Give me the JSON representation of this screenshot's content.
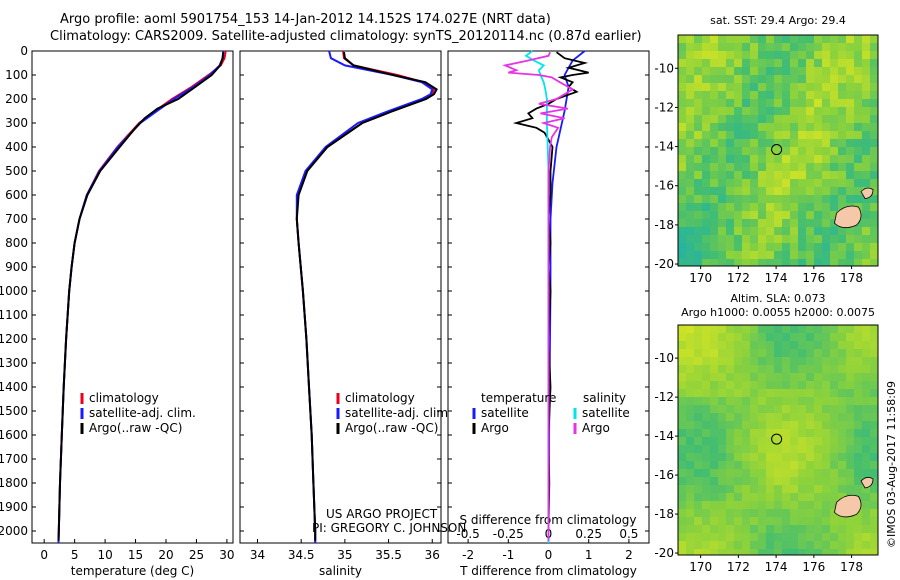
{
  "header": {
    "line1": "Argo profile: aoml 5901754_153 14-Jan-2012 14.152S 174.027E (NRT data)",
    "line2": "Climatology: CARS2009. Satellite-adjusted climatology: synTS_20120114.nc (0.87d earlier)"
  },
  "colors": {
    "climatology": "#e8001c",
    "satellite": "#1a1aff",
    "argo": "#000000",
    "satellite_salinity": "#00e5ee",
    "argo_salinity": "#e633e6"
  },
  "chart_data": [
    {
      "type": "line",
      "name": "temperature",
      "xlabel": "temperature (deg C)",
      "xlim": [
        -2,
        31
      ],
      "ylim": [
        2050,
        0
      ],
      "x_ticks": [
        "0",
        "5",
        "10",
        "15",
        "20",
        "25",
        "30"
      ],
      "y_ticks": [
        "0",
        "100",
        "200",
        "300",
        "400",
        "500",
        "600",
        "700",
        "800",
        "900",
        "1000",
        "1100",
        "1200",
        "1300",
        "1400",
        "1500",
        "1600",
        "1700",
        "1800",
        "1900",
        "2000"
      ],
      "legend": [
        "climatology",
        "satellite-adj. clim.",
        "Argo(..raw -QC)"
      ],
      "series": [
        {
          "name": "climatology",
          "depth": [
            0,
            30,
            60,
            100,
            150,
            200,
            250,
            300,
            400,
            500,
            600,
            700,
            800,
            900,
            1000,
            1200,
            1400,
            1600,
            1800,
            2000,
            2050
          ],
          "values": [
            29.8,
            29.6,
            29.0,
            27.0,
            24.2,
            21.0,
            18.2,
            15.6,
            12.0,
            9.0,
            7.0,
            5.8,
            5.0,
            4.5,
            4.1,
            3.6,
            3.2,
            2.9,
            2.6,
            2.4,
            2.35
          ]
        },
        {
          "name": "satellite-adj. clim.",
          "depth": [
            0,
            30,
            60,
            100,
            150,
            200,
            250,
            300,
            400,
            500,
            600,
            700,
            800,
            900,
            1000,
            1200,
            1400,
            1600,
            1800,
            2000,
            2050
          ],
          "values": [
            29.4,
            29.3,
            28.8,
            27.2,
            24.5,
            21.3,
            18.5,
            15.8,
            12.1,
            9.1,
            7.0,
            5.8,
            5.0,
            4.5,
            4.1,
            3.6,
            3.2,
            2.9,
            2.6,
            2.4,
            2.35
          ]
        },
        {
          "name": "Argo(..raw -QC)",
          "depth": [
            5,
            30,
            60,
            100,
            150,
            200,
            240,
            280,
            320,
            400,
            500,
            600,
            700,
            800,
            900,
            1000,
            1200,
            1400,
            1600,
            1800,
            2000,
            2040
          ],
          "values": [
            29.4,
            29.3,
            28.9,
            27.5,
            24.8,
            22.0,
            18.6,
            16.5,
            15.0,
            12.4,
            9.2,
            7.1,
            5.8,
            5.0,
            4.5,
            4.1,
            3.6,
            3.2,
            2.9,
            2.6,
            2.4,
            2.35
          ]
        }
      ]
    },
    {
      "type": "line",
      "name": "salinity",
      "xlabel": "salinity",
      "xlim": [
        33.8,
        36.1
      ],
      "ylim": [
        2050,
        0
      ],
      "x_ticks": [
        "34",
        "34.5",
        "35",
        "35.5",
        "36"
      ],
      "legend": [
        "climatology",
        "satellite-adj. clim.",
        "Argo(..raw -QC)"
      ],
      "series": [
        {
          "name": "climatology",
          "depth": [
            0,
            30,
            60,
            100,
            130,
            160,
            180,
            200,
            250,
            300,
            400,
            500,
            600,
            700,
            800,
            1000,
            1200,
            1400,
            1600,
            1800,
            2000,
            2050
          ],
          "values": [
            34.98,
            34.99,
            35.1,
            35.6,
            35.9,
            36.02,
            36.0,
            35.9,
            35.55,
            35.2,
            34.8,
            34.56,
            34.46,
            34.45,
            34.47,
            34.52,
            34.56,
            34.59,
            34.62,
            34.64,
            34.66,
            34.66
          ]
        },
        {
          "name": "satellite-adj. clim.",
          "depth": [
            0,
            30,
            60,
            100,
            130,
            160,
            180,
            200,
            250,
            300,
            400,
            500,
            600,
            700,
            800,
            1000,
            1200,
            1400,
            1600,
            1800,
            2000,
            2050
          ],
          "values": [
            34.82,
            34.84,
            35.0,
            35.55,
            35.88,
            36.0,
            35.98,
            35.88,
            35.5,
            35.15,
            34.78,
            34.55,
            34.45,
            34.45,
            34.47,
            34.52,
            34.56,
            34.59,
            34.62,
            34.64,
            34.66,
            34.66
          ]
        },
        {
          "name": "Argo(..raw -QC)",
          "depth": [
            5,
            30,
            60,
            100,
            130,
            160,
            180,
            200,
            250,
            300,
            400,
            500,
            600,
            700,
            800,
            1000,
            1200,
            1400,
            1600,
            1800,
            2000,
            2040
          ],
          "values": [
            34.99,
            35.0,
            35.1,
            35.55,
            35.92,
            36.05,
            36.02,
            35.93,
            35.55,
            35.2,
            34.8,
            34.57,
            34.47,
            34.45,
            34.47,
            34.52,
            34.56,
            34.59,
            34.62,
            34.64,
            34.66,
            34.66
          ]
        }
      ]
    },
    {
      "type": "line",
      "name": "difference",
      "xlabel_top": "S difference from climatology",
      "xlabel": "T difference from climatology",
      "xlim": [
        -2.5,
        2.5
      ],
      "ylim": [
        2050,
        0
      ],
      "x_ticks": [
        "-2",
        "-1",
        "0",
        "1",
        "2"
      ],
      "s_ticks": [
        "-0.5",
        "-0.25",
        "0",
        "0.25",
        "0.5"
      ],
      "legend": {
        "temperature_header": "temperature",
        "salinity_header": "salinity",
        "satellite": "satellite",
        "argo": "Argo"
      },
      "series": [
        {
          "name": "temperature satellite",
          "depth": [
            0,
            40,
            100,
            150,
            250,
            400,
            550,
            700,
            1000,
            1500,
            2000,
            2050
          ],
          "values": [
            0.9,
            0.6,
            0.4,
            0.5,
            0.4,
            0.2,
            0.1,
            0.05,
            0.05,
            0.02,
            0.0,
            0.0
          ]
        },
        {
          "name": "temperature Argo",
          "depth": [
            5,
            30,
            50,
            70,
            90,
            100,
            110,
            130,
            150,
            170,
            200,
            220,
            240,
            260,
            280,
            300,
            320,
            340,
            400,
            500,
            600,
            700,
            800,
            900,
            1000,
            1200,
            1400,
            1600,
            1800,
            2000,
            2040
          ],
          "values": [
            0.2,
            0.4,
            0.9,
            0.5,
            1.0,
            0.6,
            0.3,
            0.6,
            0.5,
            0.7,
            0.2,
            0.0,
            -0.3,
            -0.5,
            -0.4,
            -0.8,
            -0.3,
            -0.1,
            0.1,
            0.05,
            0.05,
            0.0,
            0.05,
            0.0,
            0.05,
            0.0,
            0.05,
            0.0,
            0.02,
            0.0,
            0.0
          ]
        },
        {
          "name": "salinity satellite",
          "depth": [
            0,
            20,
            40,
            60,
            80,
            100,
            130,
            160,
            200,
            300,
            500,
            800,
            1200,
            1600,
            2000,
            2050
          ],
          "values": [
            -0.1,
            -0.14,
            -0.09,
            -0.03,
            -0.06,
            -0.05,
            -0.03,
            -0.02,
            -0.01,
            -0.01,
            0.0,
            0.0,
            0.0,
            0.0,
            0.0,
            0.0
          ]
        },
        {
          "name": "salinity Argo",
          "depth": [
            5,
            20,
            40,
            60,
            80,
            90,
            100,
            110,
            130,
            160,
            200,
            220,
            240,
            260,
            280,
            300,
            320,
            360,
            400,
            500,
            700,
            1000,
            1400,
            2000,
            2040
          ],
          "values": [
            0.01,
            0.0,
            -0.13,
            -0.27,
            -0.2,
            -0.25,
            -0.06,
            0.02,
            0.07,
            0.15,
            0.05,
            -0.06,
            0.12,
            -0.05,
            0.1,
            -0.03,
            0.06,
            0.02,
            0.01,
            0.0,
            0.0,
            0.0,
            0.0,
            0.0,
            0.0
          ]
        }
      ]
    },
    {
      "type": "heatmap",
      "name": "sst-map",
      "title": "sat. SST: 29.4  Argo: 29.4",
      "x_ticks": [
        "170",
        "172",
        "174",
        "176",
        "178"
      ],
      "y_ticks": [
        "-10",
        "-12",
        "-14",
        "-16",
        "-18",
        "-20"
      ],
      "xlim": [
        168.8,
        179.4
      ],
      "ylim": [
        -20.1,
        -8.3
      ],
      "argo_position": [
        174.027,
        -14.152
      ]
    },
    {
      "type": "heatmap",
      "name": "sla-map",
      "title1": "Altim. SLA: 0.073",
      "title2": "Argo h1000: 0.0055 h2000: 0.0075",
      "x_ticks": [
        "170",
        "172",
        "174",
        "176",
        "178"
      ],
      "y_ticks": [
        "-10",
        "-12",
        "-14",
        "-16",
        "-18",
        "-20"
      ],
      "xlim": [
        168.8,
        179.4
      ],
      "ylim": [
        -20.1,
        -8.3
      ],
      "argo_position": [
        174.027,
        -14.152
      ]
    }
  ],
  "annotations": {
    "project": "US ARGO PROJECT",
    "pi": "PI: GREGORY C. JOHNSON",
    "credit": "©IMOS 03-Aug-2017 11:58:09"
  }
}
